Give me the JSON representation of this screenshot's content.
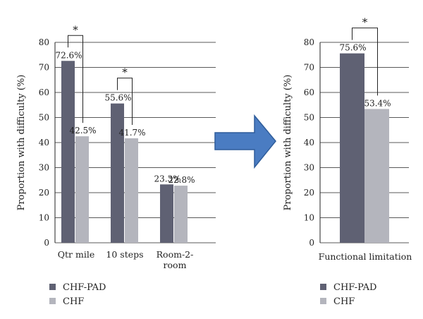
{
  "colors": {
    "chf_pad": "#5f6173",
    "chf": "#b4b5bd",
    "arrow_fill": "#4a7cc2",
    "arrow_stroke": "#2f5d9b",
    "grid": "#222222"
  },
  "chart_data": [
    {
      "type": "bar",
      "categories": [
        "Qtr mile",
        "10 steps",
        "Room-2-room"
      ],
      "category_lines": [
        [
          "Qtr mile"
        ],
        [
          "10 steps"
        ],
        [
          "Room-2-",
          "room"
        ]
      ],
      "series": [
        {
          "name": "CHF-PAD",
          "values": [
            72.6,
            55.6,
            23.3
          ]
        },
        {
          "name": "CHF",
          "values": [
            42.5,
            41.7,
            22.8
          ]
        }
      ],
      "value_labels": [
        [
          "72.6%",
          "55.6%",
          "23.3%"
        ],
        [
          "42.5%",
          "41.7%",
          "22.8%"
        ]
      ],
      "significance": [
        "*",
        "*",
        ""
      ],
      "ylabel": "Proportion with difficulty (%)",
      "ylim": [
        0,
        80
      ],
      "yticks": [
        0,
        10,
        20,
        30,
        40,
        50,
        60,
        70,
        80
      ],
      "grid": true,
      "legend": [
        "CHF-PAD",
        "CHF"
      ],
      "legend_position": "bottom-left"
    },
    {
      "type": "bar",
      "categories": [
        "Functional limitation"
      ],
      "category_lines": [
        [
          "Functional limitation"
        ]
      ],
      "series": [
        {
          "name": "CHF-PAD",
          "values": [
            75.6
          ]
        },
        {
          "name": "CHF",
          "values": [
            53.4
          ]
        }
      ],
      "value_labels": [
        [
          "75.6%"
        ],
        [
          "53.4%"
        ]
      ],
      "significance": [
        "*"
      ],
      "ylabel": "Proportion with difficulty (%)",
      "ylim": [
        0,
        80
      ],
      "yticks": [
        0,
        10,
        20,
        30,
        40,
        50,
        60,
        70,
        80
      ],
      "grid": true,
      "legend": [
        "CHF-PAD",
        "CHF"
      ],
      "legend_position": "bottom-left"
    }
  ]
}
